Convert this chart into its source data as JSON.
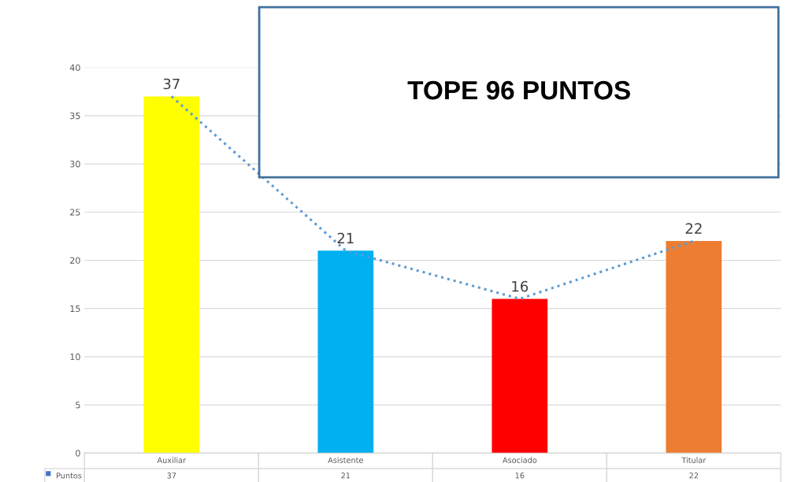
{
  "chart_data": {
    "type": "bar",
    "categories": [
      "Auxiliar",
      "Asistente",
      "Asociado",
      "Titular"
    ],
    "series": [
      {
        "name": "Puntos",
        "colors": [
          "#ffff00",
          "#00b0f0",
          "#ff0000",
          "#ed7d31"
        ],
        "values": [
          37,
          21,
          16,
          22
        ]
      },
      {
        "type": "line",
        "color": "#5b9bd5",
        "line_style": "dotted",
        "values": [
          37,
          21,
          16,
          22
        ]
      }
    ],
    "ylim": [
      0,
      40
    ],
    "yticks": [
      0,
      5,
      10,
      15,
      20,
      25,
      30,
      35,
      40
    ],
    "grid": "y",
    "data_labels": true,
    "annotations": [
      "TOPE 96 PUNTOS"
    ]
  }
}
